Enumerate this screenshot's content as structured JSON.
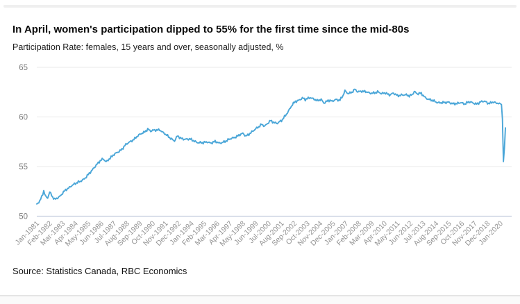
{
  "page": {
    "background_color": "#ffffff",
    "top_divider_color": "#efefef",
    "bottom_band_color": "#fafafa",
    "bottom_divider_color": "#e4e4e4"
  },
  "header": {
    "title": "In April, women's participation dipped to 55% for the first time since the mid-80s",
    "subtitle": "Participation Rate: females, 15 years and over, seasonally adjusted, %"
  },
  "footer": {
    "source": "Source: Statistics Canada, RBC Economics"
  },
  "chart_data": {
    "type": "line",
    "title": "In April, women's participation dipped to 55% for the first time since the mid-80s",
    "subtitle": "Participation Rate: females, 15 years and over, seasonally adjusted, %",
    "ylabel": "%",
    "ylim": [
      50,
      65
    ],
    "y_ticks": [
      65,
      60,
      55,
      50
    ],
    "grid": "horizontal-only",
    "legend": "none",
    "x_tick_interval_months": 13,
    "x_tick_rotation_deg": -45,
    "x_tick_labels": [
      "Jan-1981",
      "Feb-1982",
      "Mar-1983",
      "Apr-1984",
      "May-1985",
      "Jun-1986",
      "Jul-1987",
      "Aug-1988",
      "Sep-1989",
      "Oct-1990",
      "Nov-1991",
      "Dec-1992",
      "Jan-1994",
      "Feb-1995",
      "Mar-1996",
      "Apr-1997",
      "May-1998",
      "Jun-1999",
      "Jul-2000",
      "Aug-2001",
      "Sep-2002",
      "Oct-2003",
      "Nov-2004",
      "Dec-2005",
      "Jan-2007",
      "Feb-2008",
      "Mar-2009",
      "Apr-2010",
      "May-2011",
      "Jun-2012",
      "Jul-2013",
      "Aug-2014",
      "Sep-2015",
      "Oct-2016",
      "Nov-2017",
      "Dec-2018",
      "Jan-2020"
    ],
    "line_color": "#4aa6d8",
    "gridline_color": "#e8e8e8",
    "axis_line_color": "#c5cede",
    "y_tick_label_color": "#7d7d7d",
    "x_tick_label_color": "#929292",
    "series": [
      {
        "name": "Participation Rate: females, 15 years and over, seasonally adjusted, %",
        "x_months_from": "Jan-1981",
        "x_months_to": "Jun-2020",
        "points_month_value": [
          [
            0,
            51.15
          ],
          [
            3,
            51.5
          ],
          [
            5,
            51.95
          ],
          [
            7,
            52.6
          ],
          [
            9,
            52.0
          ],
          [
            11,
            51.85
          ],
          [
            13,
            52.4
          ],
          [
            16,
            51.9
          ],
          [
            18,
            51.7
          ],
          [
            21,
            51.9
          ],
          [
            24,
            52.05
          ],
          [
            27,
            52.4
          ],
          [
            30,
            52.7
          ],
          [
            35,
            53.1
          ],
          [
            40,
            53.3
          ],
          [
            45,
            53.6
          ],
          [
            50,
            53.95
          ],
          [
            55,
            54.5
          ],
          [
            58,
            54.95
          ],
          [
            61,
            55.3
          ],
          [
            64,
            55.55
          ],
          [
            67,
            55.75
          ],
          [
            70,
            55.5
          ],
          [
            73,
            55.8
          ],
          [
            77,
            56.1
          ],
          [
            81,
            56.4
          ],
          [
            85,
            56.7
          ],
          [
            90,
            57.2
          ],
          [
            95,
            57.55
          ],
          [
            100,
            57.95
          ],
          [
            104,
            58.2
          ],
          [
            108,
            58.45
          ],
          [
            112,
            58.8
          ],
          [
            115,
            58.55
          ],
          [
            119,
            58.65
          ],
          [
            124,
            58.75
          ],
          [
            127,
            58.45
          ],
          [
            130,
            58.2
          ],
          [
            134,
            57.95
          ],
          [
            137,
            57.75
          ],
          [
            139,
            57.6
          ],
          [
            142,
            58.05
          ],
          [
            145,
            57.85
          ],
          [
            149,
            57.8
          ],
          [
            154,
            57.75
          ],
          [
            158,
            57.6
          ],
          [
            163,
            57.45
          ],
          [
            168,
            57.35
          ],
          [
            172,
            57.5
          ],
          [
            176,
            57.4
          ],
          [
            180,
            57.5
          ],
          [
            184,
            57.35
          ],
          [
            188,
            57.5
          ],
          [
            192,
            57.6
          ],
          [
            196,
            57.8
          ],
          [
            200,
            58.0
          ],
          [
            204,
            58.15
          ],
          [
            208,
            58.3
          ],
          [
            211,
            58.1
          ],
          [
            215,
            58.35
          ],
          [
            219,
            58.6
          ],
          [
            223,
            58.95
          ],
          [
            227,
            59.3
          ],
          [
            230,
            59.05
          ],
          [
            233,
            59.3
          ],
          [
            236,
            59.65
          ],
          [
            240,
            59.45
          ],
          [
            243,
            59.35
          ],
          [
            247,
            59.6
          ],
          [
            250,
            60.05
          ],
          [
            254,
            60.6
          ],
          [
            258,
            61.2
          ],
          [
            261,
            61.55
          ],
          [
            264,
            61.7
          ],
          [
            268,
            61.9
          ],
          [
            271,
            61.7
          ],
          [
            276,
            62.0
          ],
          [
            280,
            61.8
          ],
          [
            283,
            61.6
          ],
          [
            287,
            61.75
          ],
          [
            290,
            61.45
          ],
          [
            294,
            61.65
          ],
          [
            298,
            61.55
          ],
          [
            302,
            61.8
          ],
          [
            306,
            61.7
          ],
          [
            309,
            62.1
          ],
          [
            311,
            62.6
          ],
          [
            314,
            62.4
          ],
          [
            318,
            62.5
          ],
          [
            321,
            62.75
          ],
          [
            324,
            62.5
          ],
          [
            328,
            62.65
          ],
          [
            332,
            62.55
          ],
          [
            336,
            62.35
          ],
          [
            340,
            62.45
          ],
          [
            344,
            62.55
          ],
          [
            348,
            62.3
          ],
          [
            352,
            62.45
          ],
          [
            356,
            62.25
          ],
          [
            360,
            62.35
          ],
          [
            364,
            62.15
          ],
          [
            368,
            62.25
          ],
          [
            372,
            62.2
          ],
          [
            376,
            62.1
          ],
          [
            379,
            62.3
          ],
          [
            381,
            62.6
          ],
          [
            384,
            62.3
          ],
          [
            388,
            62.35
          ],
          [
            392,
            62.0
          ],
          [
            396,
            61.75
          ],
          [
            400,
            61.6
          ],
          [
            404,
            61.5
          ],
          [
            408,
            61.45
          ],
          [
            412,
            61.4
          ],
          [
            416,
            61.5
          ],
          [
            420,
            61.35
          ],
          [
            424,
            61.3
          ],
          [
            428,
            61.45
          ],
          [
            432,
            61.35
          ],
          [
            436,
            61.5
          ],
          [
            440,
            61.4
          ],
          [
            444,
            61.35
          ],
          [
            448,
            61.5
          ],
          [
            452,
            61.55
          ],
          [
            456,
            61.4
          ],
          [
            460,
            61.5
          ],
          [
            464,
            61.35
          ],
          [
            467,
            61.4
          ],
          [
            469,
            61.25
          ],
          [
            470,
            59.8
          ],
          [
            471,
            55.5
          ],
          [
            472,
            56.9
          ],
          [
            473,
            58.9
          ]
        ]
      }
    ]
  }
}
